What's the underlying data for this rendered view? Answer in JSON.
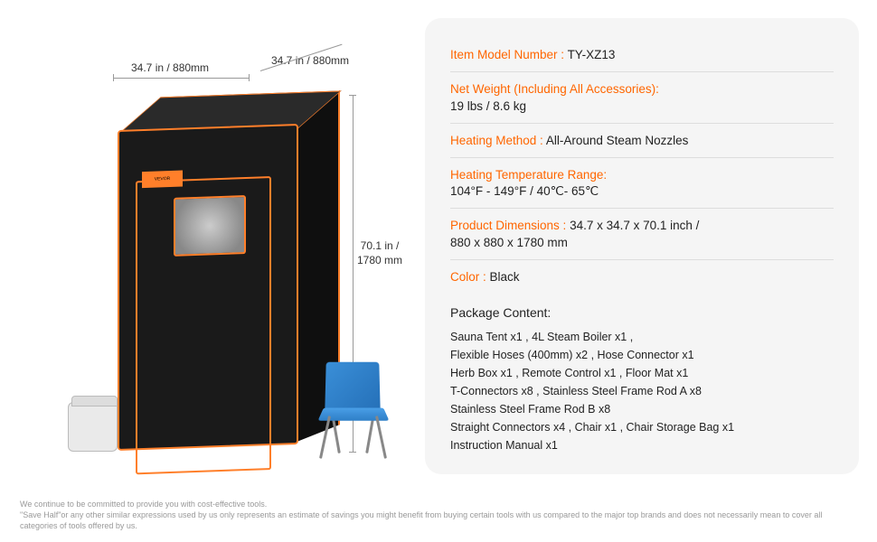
{
  "diagram": {
    "dim_width": "34.7 in / 880mm",
    "dim_depth": "34.7 in / 880mm",
    "dim_height_line1": "70.1 in /",
    "dim_height_line2": "1780 mm",
    "brand": "VEVOR"
  },
  "specs": [
    {
      "label": "Item Model Number : ",
      "value": "TY-XZ13"
    },
    {
      "label": "Net Weight (Including All Accessories):",
      "value": "\n19 lbs / 8.6 kg"
    },
    {
      "label": "Heating Method : ",
      "value": "All-Around Steam Nozzles"
    },
    {
      "label": "Heating Temperature Range:",
      "value": "\n104°F - 149°F / 40℃- 65℃"
    },
    {
      "label": "Product Dimensions : ",
      "value": "34.7 x 34.7 x 70.1 inch /\n880 x 880 x 1780 mm"
    },
    {
      "label": "Color :  ",
      "value": "Black"
    }
  ],
  "package": {
    "title": "Package Content:",
    "body": "Sauna Tent x1 , 4L Steam Boiler x1 ,\nFlexible Hoses (400mm) x2 , Hose Connector x1\nHerb Box x1 , Remote Control x1 , Floor Mat x1\nT-Connectors x8 , Stainless Steel Frame Rod A x8\nStainless Steel Frame Rod B x8\nStraight Connectors x4 , Chair x1 , Chair Storage Bag x1\nInstruction Manual x1"
  },
  "footer": {
    "line1": "We continue to be committed to provide you with cost-effective tools.",
    "line2": "\"Save Half\"or any other similar expressions used by us only represents an estimate of savings you might benefit from buying certain tools with us compared to the major top brands and does not necessarily mean to cover all categories of tools offered by us."
  },
  "colors": {
    "accent": "#ff6600",
    "panel_bg": "#f5f5f5",
    "text": "#222222",
    "muted": "#999999",
    "tent_body": "#1a1a1a",
    "tent_trim": "#ff7f2a",
    "chair": "#3a8fd8"
  }
}
